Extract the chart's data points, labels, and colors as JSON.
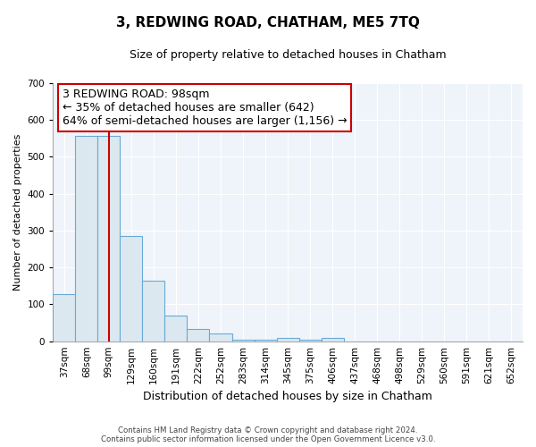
{
  "title": "3, REDWING ROAD, CHATHAM, ME5 7TQ",
  "subtitle": "Size of property relative to detached houses in Chatham",
  "xlabel": "Distribution of detached houses by size in Chatham",
  "ylabel": "Number of detached properties",
  "categories": [
    "37sqm",
    "68sqm",
    "99sqm",
    "129sqm",
    "160sqm",
    "191sqm",
    "222sqm",
    "252sqm",
    "283sqm",
    "314sqm",
    "345sqm",
    "375sqm",
    "406sqm",
    "437sqm",
    "468sqm",
    "498sqm",
    "529sqm",
    "560sqm",
    "591sqm",
    "621sqm",
    "652sqm"
  ],
  "values": [
    128,
    557,
    557,
    285,
    165,
    70,
    33,
    20,
    5,
    5,
    10,
    5,
    10,
    0,
    0,
    0,
    0,
    0,
    0,
    0,
    0
  ],
  "bar_color": "#dce8f0",
  "bar_edge_color": "#6aaad4",
  "vline_x_index": 2,
  "vline_color": "#cc0000",
  "annotation_line1": "3 REDWING ROAD: 98sqm",
  "annotation_line2": "← 35% of detached houses are smaller (642)",
  "annotation_line3": "64% of semi-detached houses are larger (1,156) →",
  "box_edge_color": "#cc0000",
  "ylim": [
    0,
    700
  ],
  "yticks": [
    0,
    100,
    200,
    300,
    400,
    500,
    600,
    700
  ],
  "footer_line1": "Contains HM Land Registry data © Crown copyright and database right 2024.",
  "footer_line2": "Contains public sector information licensed under the Open Government Licence v3.0.",
  "background_color": "#ffffff",
  "axes_bg_color": "#eef4f9",
  "grid_color": "#ffffff",
  "title_fontsize": 11,
  "subtitle_fontsize": 9,
  "xlabel_fontsize": 9,
  "ylabel_fontsize": 8,
  "tick_fontsize": 7.5,
  "annotation_fontsize": 9
}
